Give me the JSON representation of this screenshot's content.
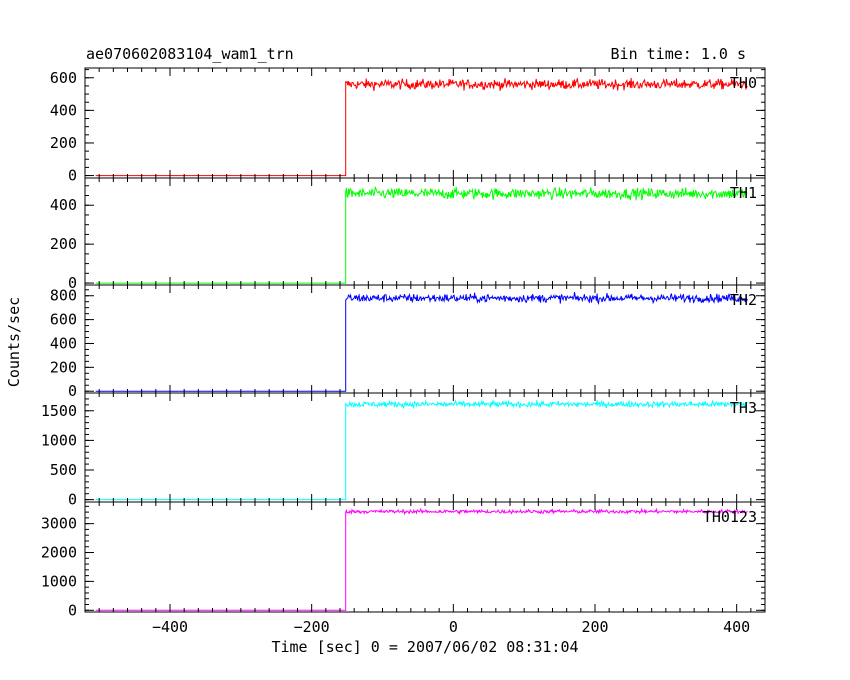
{
  "header": {
    "title": "ae070602083104_wam1_trn",
    "bin_time": "Bin time: 1.0 s"
  },
  "chart_data": {
    "type": "line",
    "title": "ae070602083104_wam1_trn",
    "xlabel": "Time [sec] 0 = 2007/06/02 08:31:04",
    "ylabel": "Counts/sec",
    "xlim": [
      -520,
      440
    ],
    "xticks": [
      -400,
      -200,
      0,
      200,
      400
    ],
    "xtick_labels": [
      "−400",
      "−200",
      "0",
      "200",
      "400"
    ],
    "step_time": -152,
    "panels": [
      {
        "name": "TH0",
        "color": "#ff0000",
        "ylim": [
          -15,
          660
        ],
        "yticks": [
          0,
          200,
          400,
          600
        ],
        "baseline": 0,
        "level": 560,
        "noise": 22
      },
      {
        "name": "TH1",
        "color": "#00ff00",
        "ylim": [
          -10,
          540
        ],
        "yticks": [
          0,
          200,
          400
        ],
        "baseline": 0,
        "level": 460,
        "noise": 20
      },
      {
        "name": "TH2",
        "color": "#0000ff",
        "ylim": [
          -15,
          890
        ],
        "yticks": [
          0,
          200,
          400,
          600,
          800
        ],
        "baseline": 0,
        "level": 780,
        "noise": 25
      },
      {
        "name": "TH3",
        "color": "#00ffff",
        "ylim": [
          -40,
          1800
        ],
        "yticks": [
          0,
          500,
          1000,
          1500
        ],
        "baseline": 0,
        "level": 1610,
        "noise": 35
      },
      {
        "name": "TH0123",
        "color": "#ff00ff",
        "ylim": [
          -60,
          3750
        ],
        "yticks": [
          0,
          1000,
          2000,
          3000
        ],
        "baseline": 0,
        "level": 3420,
        "noise": 45
      }
    ]
  }
}
